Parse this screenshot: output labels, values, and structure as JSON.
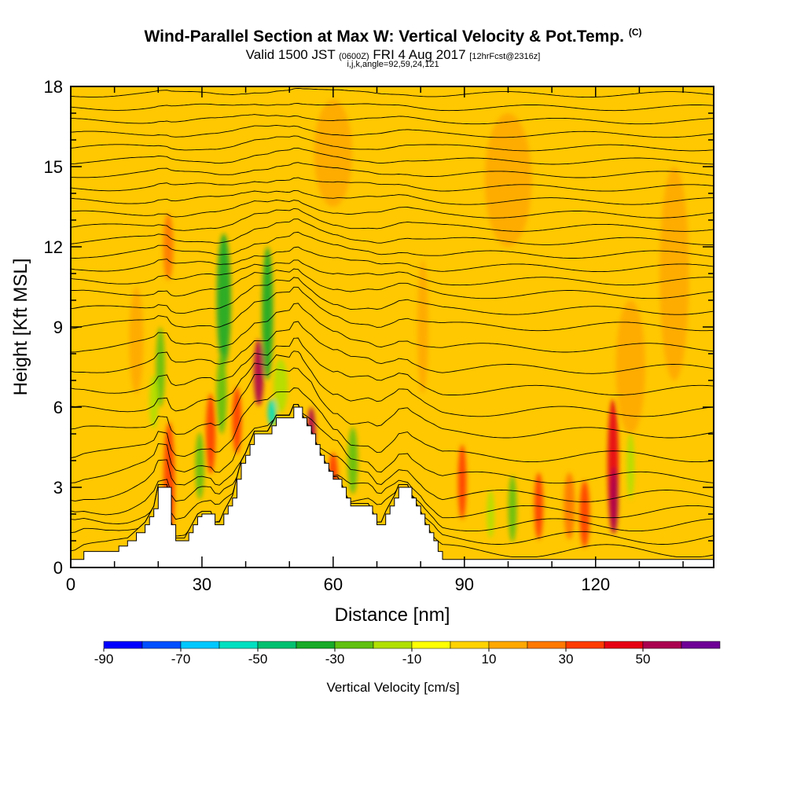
{
  "header": {
    "title": "Wind-Parallel Section at Max W: Vertical Velocity & Pot.Temp.",
    "title_mark": "(C)",
    "subtitle_valid": "Valid 1500 JST",
    "subtitle_utc": "(0600Z)",
    "subtitle_date": "FRI 4 Aug 2017",
    "subtitle_fcst": "[12hrFcst@2316z]",
    "subtitle_indices": "i,j,k,angle=92,59,24,121"
  },
  "chart_data": {
    "type": "heatmap",
    "xlabel": "Distance [nm]",
    "ylabel": "Height [Kft MSL]",
    "xlim": [
      0,
      147
    ],
    "ylim": [
      0,
      18
    ],
    "x_ticks": [
      0,
      30,
      60,
      90,
      120
    ],
    "y_ticks": [
      0,
      3,
      6,
      9,
      12,
      15,
      18
    ],
    "terrain": {
      "x": [
        0,
        1,
        3,
        8,
        11,
        13,
        15,
        17,
        18,
        19,
        20,
        22,
        23,
        24,
        25,
        26,
        27,
        28,
        29,
        30,
        31,
        32,
        33,
        34,
        35,
        36,
        37,
        38,
        39,
        40,
        41,
        42,
        43,
        44,
        45,
        46,
        47,
        48,
        49,
        50,
        51,
        52,
        53,
        54,
        55,
        56,
        57,
        58,
        59,
        60,
        61,
        62,
        63,
        64,
        65,
        66,
        67,
        68,
        69,
        70,
        71,
        72,
        73,
        74,
        75,
        76,
        77,
        78,
        79,
        80,
        81,
        82,
        83,
        84,
        85,
        86,
        87,
        88,
        89,
        90,
        92,
        93,
        94,
        95,
        96,
        97,
        100,
        147
      ],
      "height": [
        0.3,
        0.3,
        0.6,
        0.6,
        0.8,
        1.0,
        1.3,
        1.6,
        1.9,
        2.2,
        3.0,
        3.0,
        1.6,
        1.0,
        1.0,
        1.0,
        1.3,
        1.6,
        1.9,
        2.0,
        2.0,
        2.0,
        1.6,
        1.6,
        2.0,
        2.3,
        2.6,
        3.3,
        3.9,
        4.2,
        4.6,
        5.0,
        5.0,
        5.0,
        5.0,
        5.3,
        5.6,
        5.6,
        5.6,
        5.6,
        6.0,
        6.0,
        5.6,
        5.3,
        5.0,
        4.6,
        4.2,
        3.9,
        3.6,
        3.3,
        3.3,
        3.0,
        2.6,
        2.3,
        2.3,
        2.3,
        2.3,
        2.3,
        2.0,
        1.6,
        1.6,
        2.0,
        2.3,
        2.6,
        3.0,
        3.0,
        3.0,
        2.6,
        2.3,
        2.0,
        1.6,
        1.3,
        1.0,
        0.6,
        0.3,
        0.3,
        0.3,
        0.3,
        0.3,
        0.3,
        0.3,
        0.3,
        0.3,
        0.3,
        0.3,
        0.3,
        0.3,
        0.3
      ]
    },
    "velocity_cores": [
      {
        "x": 22.5,
        "y": 3.2,
        "w": 1.8,
        "h": 4.5,
        "value": 35
      },
      {
        "x": 22.3,
        "y": 12.0,
        "w": 1.6,
        "h": 2.5,
        "value": 25
      },
      {
        "x": 20.5,
        "y": 7.5,
        "w": 1.3,
        "h": 3.0,
        "value": -30
      },
      {
        "x": 19.0,
        "y": 6.2,
        "w": 1.3,
        "h": 2.0,
        "value": -20
      },
      {
        "x": 15.0,
        "y": 8.5,
        "w": 2.5,
        "h": 4.0,
        "value": 15
      },
      {
        "x": 32.0,
        "y": 5.0,
        "w": 1.5,
        "h": 3.0,
        "value": 30
      },
      {
        "x": 29.5,
        "y": 3.8,
        "w": 1.3,
        "h": 2.5,
        "value": -30
      },
      {
        "x": 35.0,
        "y": 10.0,
        "w": 2.5,
        "h": 5.0,
        "value": -35
      },
      {
        "x": 34.5,
        "y": 6.5,
        "w": 1.6,
        "h": 3.0,
        "value": -25
      },
      {
        "x": 38.0,
        "y": 5.5,
        "w": 1.4,
        "h": 2.5,
        "value": 30
      },
      {
        "x": 43.0,
        "y": 7.3,
        "w": 1.6,
        "h": 2.5,
        "value": 55
      },
      {
        "x": 45.0,
        "y": 9.5,
        "w": 1.8,
        "h": 5.0,
        "value": -35
      },
      {
        "x": 46.0,
        "y": 5.8,
        "w": 1.2,
        "h": 1.0,
        "value": -60
      },
      {
        "x": 48.0,
        "y": 6.8,
        "w": 2.5,
        "h": 2.0,
        "value": -20
      },
      {
        "x": 55.0,
        "y": 5.0,
        "w": 1.2,
        "h": 2.0,
        "value": 50
      },
      {
        "x": 60.0,
        "y": 3.3,
        "w": 1.5,
        "h": 2.0,
        "value": 30
      },
      {
        "x": 64.5,
        "y": 4.0,
        "w": 1.6,
        "h": 2.5,
        "value": -30
      },
      {
        "x": 80.5,
        "y": 9.0,
        "w": 1.8,
        "h": 5.0,
        "value": 15
      },
      {
        "x": 89.5,
        "y": 3.2,
        "w": 1.2,
        "h": 2.8,
        "value": 35
      },
      {
        "x": 96.0,
        "y": 2.0,
        "w": 1.0,
        "h": 1.8,
        "value": -20
      },
      {
        "x": 101.0,
        "y": 2.2,
        "w": 1.2,
        "h": 2.5,
        "value": -30
      },
      {
        "x": 107.0,
        "y": 2.3,
        "w": 1.3,
        "h": 2.5,
        "value": 30
      },
      {
        "x": 114.0,
        "y": 2.3,
        "w": 1.8,
        "h": 2.5,
        "value": 20
      },
      {
        "x": 117.5,
        "y": 2.0,
        "w": 1.6,
        "h": 2.5,
        "value": 30
      },
      {
        "x": 124.0,
        "y": 3.8,
        "w": 1.8,
        "h": 5.0,
        "value": 45
      },
      {
        "x": 124.2,
        "y": 2.5,
        "w": 1.2,
        "h": 2.5,
        "value": 55
      },
      {
        "x": 128.0,
        "y": 3.8,
        "w": 1.0,
        "h": 2.5,
        "value": -20
      },
      {
        "x": 128.0,
        "y": 7.5,
        "w": 6.0,
        "h": 5.0,
        "value": 10
      },
      {
        "x": 138.0,
        "y": 11.0,
        "w": 6.0,
        "h": 8.0,
        "value": 10
      },
      {
        "x": 100.0,
        "y": 14.5,
        "w": 10.0,
        "h": 5.0,
        "value": 10
      },
      {
        "x": 60.0,
        "y": 15.5,
        "w": 8.0,
        "h": 4.0,
        "value": 10
      }
    ],
    "isentropes": {
      "levels": [
        0.5,
        1.0,
        1.5,
        2.0,
        2.6,
        3.3,
        4.1,
        5.0,
        5.8,
        6.6,
        7.4,
        8.2,
        9.0,
        9.6,
        10.2,
        10.7,
        11.2,
        11.7,
        12.2,
        12.7,
        13.2,
        13.7,
        14.2,
        14.7,
        15.2,
        15.7,
        16.2,
        16.7,
        17.2,
        17.7
      ]
    },
    "colorbar": {
      "title": "Vertical Velocity [cm/s]",
      "bounds": [
        -90,
        -80,
        -70,
        -60,
        -50,
        -40,
        -30,
        -20,
        -10,
        0,
        10,
        20,
        30,
        40,
        50,
        60
      ],
      "labels": [
        "-90",
        "-70",
        "-50",
        "-30",
        "-10",
        "10",
        "30",
        "50"
      ],
      "colors": [
        "#0000ff",
        "#0050ff",
        "#00c8ff",
        "#00e0c0",
        "#00c070",
        "#18aa28",
        "#60c010",
        "#b0e000",
        "#ffff00",
        "#ffd200",
        "#ffa800",
        "#ff7800",
        "#ff3c00",
        "#e60014",
        "#aa0050",
        "#6e0096"
      ]
    }
  }
}
